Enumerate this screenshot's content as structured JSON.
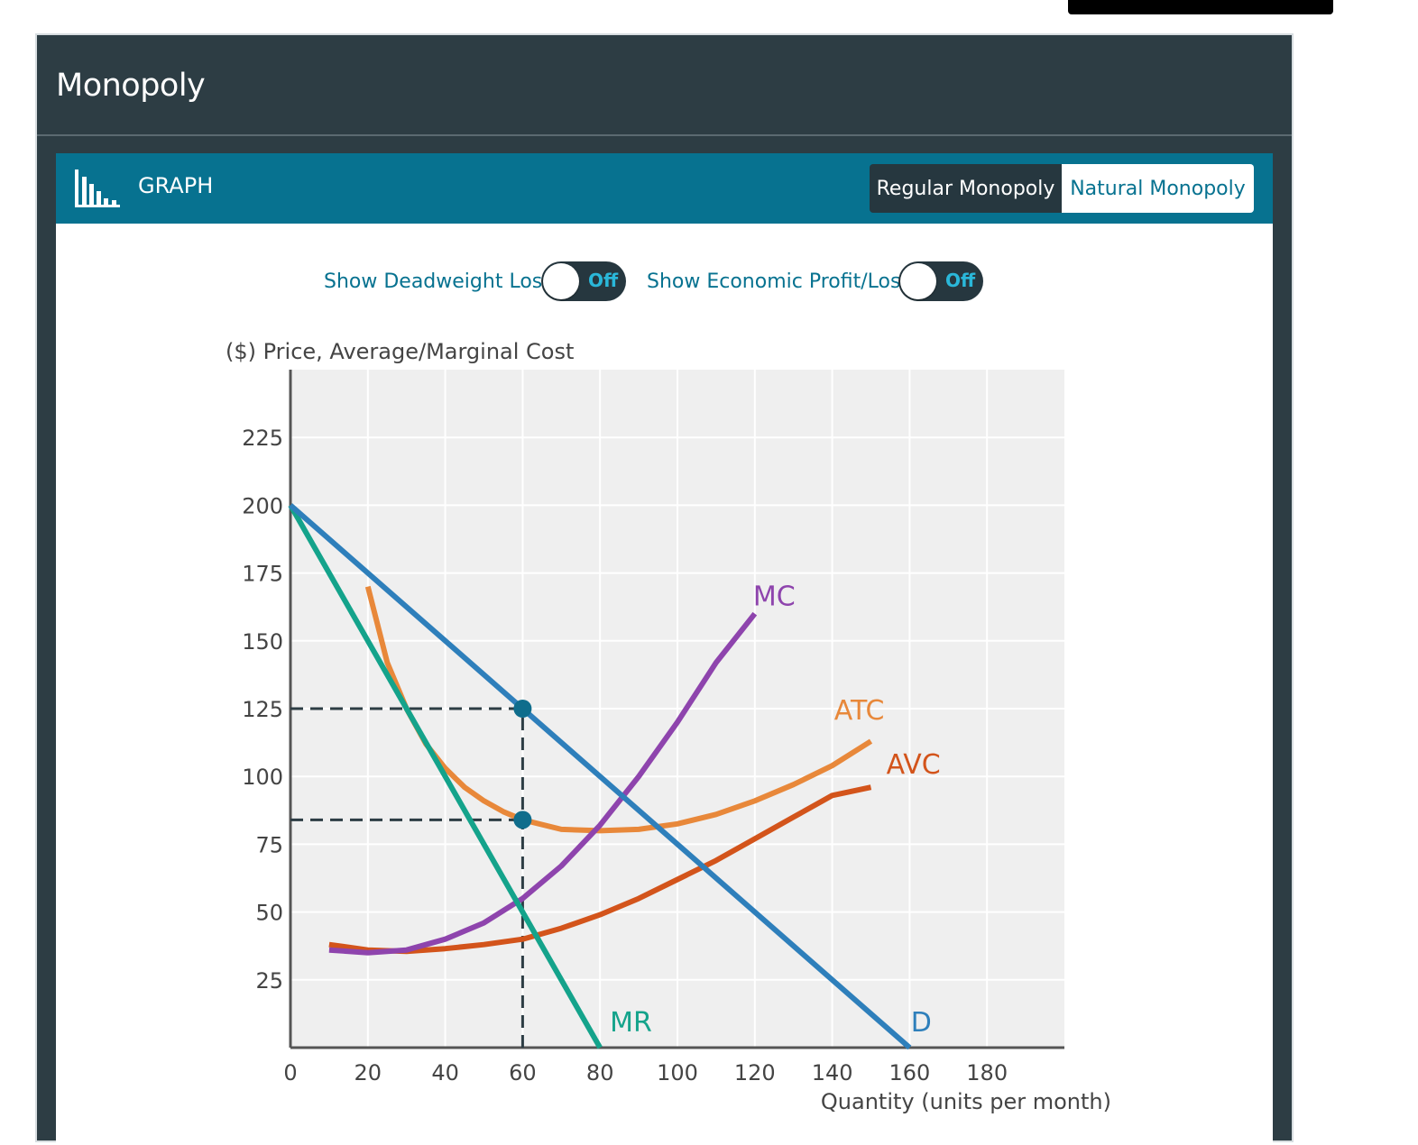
{
  "app": {
    "title": "Monopoly"
  },
  "graph_panel": {
    "label": "GRAPH",
    "icon": "bar-chart-icon",
    "tabs": [
      {
        "label": "Regular Monopoly",
        "selected": true
      },
      {
        "label": "Natural Monopoly",
        "selected": false
      }
    ],
    "toggles": [
      {
        "label": "Show Deadweight Loss",
        "state": "Off"
      },
      {
        "label": "Show Economic Profit/Loss",
        "state": "Off"
      }
    ]
  },
  "colors": {
    "header_dark": "#2d3d44",
    "panel_teal": "#077290",
    "demand": "#2e7fbb",
    "mr": "#14a38b",
    "mc": "#8e44ad",
    "atc": "#e8883a",
    "avc": "#d3541b",
    "marker": "#0f6d8c",
    "guide": "#2d3d44"
  },
  "chart_data": {
    "type": "line",
    "ylabel": "($) Price, Average/Marginal Cost",
    "xlabel": "Quantity (units per month)",
    "xlim": [
      0,
      200
    ],
    "ylim": [
      0,
      250
    ],
    "x_ticks": [
      0,
      20,
      40,
      60,
      80,
      100,
      120,
      140,
      160,
      180
    ],
    "y_ticks": [
      25,
      50,
      75,
      100,
      125,
      150,
      175,
      200,
      225
    ],
    "grid": true,
    "series": [
      {
        "name": "D",
        "color_key": "demand",
        "points": [
          [
            0,
            200
          ],
          [
            160,
            0
          ]
        ]
      },
      {
        "name": "MR",
        "color_key": "mr",
        "points": [
          [
            0,
            200
          ],
          [
            80,
            0
          ]
        ]
      },
      {
        "name": "MC",
        "color_key": "mc",
        "points": [
          [
            10,
            36
          ],
          [
            20,
            35
          ],
          [
            30,
            36
          ],
          [
            40,
            40
          ],
          [
            50,
            46
          ],
          [
            60,
            55
          ],
          [
            70,
            67
          ],
          [
            80,
            82
          ],
          [
            90,
            100
          ],
          [
            100,
            120
          ],
          [
            110,
            142
          ],
          [
            120,
            160
          ]
        ]
      },
      {
        "name": "ATC",
        "color_key": "atc",
        "points": [
          [
            20,
            170
          ],
          [
            25,
            142
          ],
          [
            30,
            125
          ],
          [
            35,
            112
          ],
          [
            40,
            103
          ],
          [
            45,
            96
          ],
          [
            50,
            91
          ],
          [
            55,
            87
          ],
          [
            60,
            84
          ],
          [
            70,
            80.5
          ],
          [
            80,
            80
          ],
          [
            90,
            80.5
          ],
          [
            100,
            82.5
          ],
          [
            110,
            86
          ],
          [
            120,
            91
          ],
          [
            130,
            97
          ],
          [
            140,
            104
          ],
          [
            150,
            113
          ]
        ]
      },
      {
        "name": "AVC",
        "color_key": "avc",
        "points": [
          [
            10,
            38
          ],
          [
            20,
            36
          ],
          [
            30,
            35.5
          ],
          [
            40,
            36.5
          ],
          [
            50,
            38
          ],
          [
            60,
            40
          ],
          [
            70,
            44
          ],
          [
            80,
            49
          ],
          [
            90,
            55
          ],
          [
            100,
            62
          ],
          [
            110,
            69
          ],
          [
            120,
            77
          ],
          [
            130,
            85
          ],
          [
            140,
            93
          ],
          [
            150,
            96
          ]
        ]
      }
    ],
    "markers": [
      {
        "x": 60,
        "y": 125
      },
      {
        "x": 60,
        "y": 84
      }
    ],
    "guides": [
      {
        "from": [
          0,
          125
        ],
        "to": [
          60,
          125
        ]
      },
      {
        "from": [
          0,
          84
        ],
        "to": [
          60,
          84
        ]
      },
      {
        "from": [
          60,
          0
        ],
        "to": [
          60,
          125
        ]
      }
    ]
  }
}
